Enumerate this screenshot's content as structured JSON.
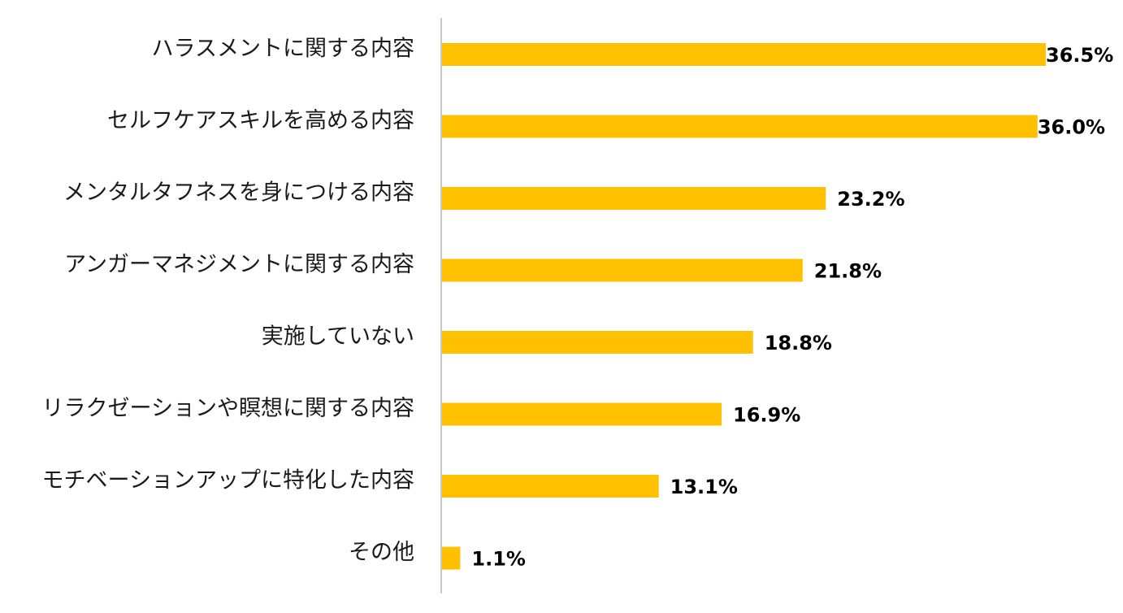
{
  "chart_data": {
    "type": "bar",
    "orientation": "horizontal",
    "title": "",
    "xlabel": "",
    "ylabel": "",
    "categories": [
      "ハラスメントに関する内容",
      "セルフケアスキルを高める内容",
      "メンタルタフネスを身につける内容",
      "アンガーマネジメントに関する内容",
      "実施していない",
      "リラクゼーションや瞑想に関する内容",
      "モチベーションアップに特化した内容",
      "その他"
    ],
    "values": [
      36.5,
      36.0,
      23.2,
      21.8,
      18.8,
      16.9,
      13.1,
      1.1
    ],
    "value_labels": [
      "36.5%",
      "36.0%",
      "23.2%",
      "21.8%",
      "18.8%",
      "16.9%",
      "13.1%",
      "1.1%"
    ],
    "unit": "%",
    "xlim": [
      0,
      36.5
    ],
    "bar_color": "#FFC000",
    "axis_color": "#c8c8c8",
    "grid": false,
    "legend": "none"
  }
}
